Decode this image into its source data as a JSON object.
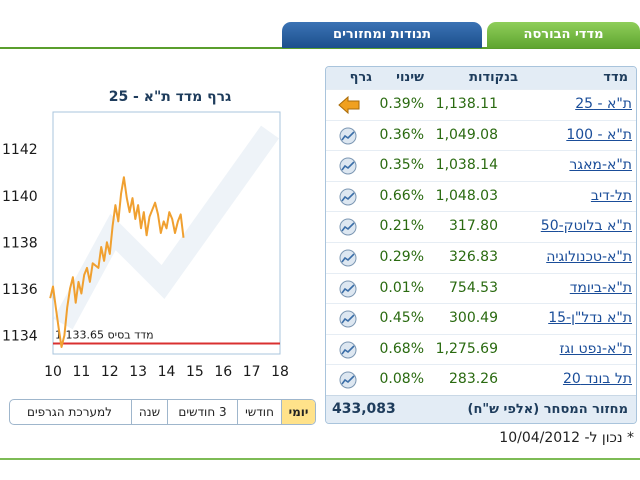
{
  "tabs": [
    {
      "label": "מדדי הבורסה",
      "active": true
    },
    {
      "label": "תנודות ומחזורים",
      "active": false
    }
  ],
  "table": {
    "headers": {
      "name": "מדד",
      "points": "בנקודות",
      "change": "שינוי",
      "graph": "גרף"
    },
    "rows": [
      {
        "name": "ת\"א - 25",
        "points": "1,138.11",
        "change": "0.39%",
        "icon": "arrow-left-icon"
      },
      {
        "name": "ת\"א - 100",
        "points": "1,049.08",
        "change": "0.36%",
        "icon": "chart-icon"
      },
      {
        "name": "ת\"א-מאגר",
        "points": "1,038.14",
        "change": "0.35%",
        "icon": "chart-icon"
      },
      {
        "name": "תל-דיב",
        "points": "1,048.03",
        "change": "0.66%",
        "icon": "chart-icon"
      },
      {
        "name": "ת\"א בלוטק-50",
        "points": "317.80",
        "change": "0.21%",
        "icon": "chart-icon"
      },
      {
        "name": "ת\"א-טכנולוגיה",
        "points": "326.83",
        "change": "0.29%",
        "icon": "chart-icon"
      },
      {
        "name": "ת\"א-ביומד",
        "points": "754.53",
        "change": "0.01%",
        "icon": "chart-icon"
      },
      {
        "name": "ת\"א נדל\"ן-15",
        "points": "300.49",
        "change": "0.45%",
        "icon": "chart-icon"
      },
      {
        "name": "ת\"א-נפט וגז",
        "points": "1,275.69",
        "change": "0.68%",
        "icon": "chart-icon"
      },
      {
        "name": "תל בונד 20",
        "points": "283.26",
        "change": "0.08%",
        "icon": "chart-icon"
      }
    ],
    "footer_label": "מחזור המסחר (אלפי ש\"ח)",
    "footer_value": "433,083"
  },
  "as_of": "* נכון ל- 10/04/2012",
  "period_buttons": [
    {
      "label": "יומי",
      "active": true
    },
    {
      "label": "חודשי",
      "active": false
    },
    {
      "label": "3 חודשים",
      "active": false
    },
    {
      "label": "שנה",
      "active": false
    },
    {
      "label": "למערכת הגרפים",
      "active": false
    }
  ],
  "colors": {
    "line": "#f0a030",
    "base_line": "#d93030",
    "positive": "#2a6a10",
    "link": "#1a4d99"
  },
  "chart_data": {
    "type": "line",
    "title": "גרף מדד ת\"א - 25",
    "x_ticks": [
      "10",
      "11",
      "12",
      "13",
      "14",
      "15",
      "16",
      "17",
      "18"
    ],
    "y_ticks": [
      "1134",
      "1136",
      "1138",
      "1140",
      "1142"
    ],
    "xlim": [
      10,
      18
    ],
    "ylim": [
      1133.2,
      1143.6
    ],
    "base_value": 1133.65,
    "base_label": "מדד בסיס 1,133.65",
    "x": [
      9.9,
      10.0,
      10.1,
      10.2,
      10.3,
      10.4,
      10.5,
      10.6,
      10.7,
      10.8,
      10.9,
      11.0,
      11.1,
      11.2,
      11.3,
      11.4,
      11.5,
      11.6,
      11.7,
      11.8,
      11.9,
      12.0,
      12.1,
      12.2,
      12.3,
      12.4,
      12.5,
      12.6,
      12.7,
      12.8,
      12.9,
      13.0,
      13.1,
      13.2,
      13.3,
      13.4,
      13.5,
      13.6,
      13.7,
      13.8,
      13.9,
      14.0,
      14.1,
      14.2,
      14.3,
      14.4,
      14.5,
      14.6
    ],
    "y": [
      1135.6,
      1136.1,
      1135.2,
      1134.3,
      1133.5,
      1134.0,
      1135.2,
      1136.0,
      1136.5,
      1135.4,
      1136.3,
      1135.8,
      1136.6,
      1136.9,
      1136.3,
      1137.1,
      1137.0,
      1136.9,
      1137.8,
      1137.2,
      1138.0,
      1137.5,
      1138.7,
      1139.6,
      1138.9,
      1140.1,
      1140.8,
      1139.9,
      1139.3,
      1139.9,
      1139.0,
      1139.6,
      1138.6,
      1139.3,
      1138.3,
      1139.1,
      1139.4,
      1139.7,
      1139.2,
      1138.4,
      1138.9,
      1138.6,
      1139.3,
      1139.0,
      1138.4,
      1138.9,
      1139.2,
      1138.2
    ]
  }
}
